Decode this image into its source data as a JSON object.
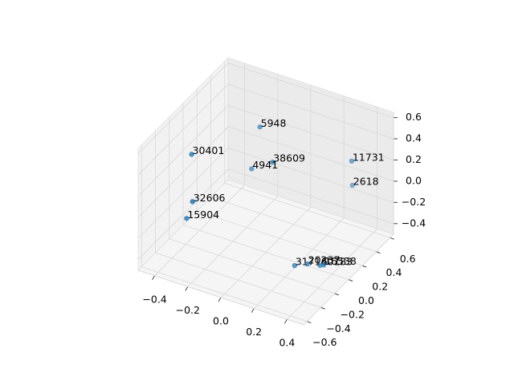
{
  "chart_data": {
    "type": "scatter3d",
    "x": [
      -0.09,
      -0.34,
      0.04,
      -0.14,
      0.41,
      0.36,
      -0.28,
      -0.37,
      0.22,
      0.28,
      0.34,
      0.35
    ],
    "y": [
      0.13,
      -0.26,
      0.0,
      0.13,
      0.26,
      0.39,
      -0.39,
      -0.26,
      -0.11,
      -0.07,
      -0.03,
      0.0
    ],
    "z": [
      0.55,
      0.42,
      0.37,
      0.13,
      0.4,
      0.06,
      0.09,
      -0.2,
      -0.44,
      -0.42,
      -0.43,
      -0.44
    ],
    "labels": [
      "5948",
      "30401",
      "38609",
      "4941",
      "11731",
      "2618",
      "32606",
      "15904",
      "31716",
      "20237",
      "40183",
      "16538"
    ],
    "color": "#1f77b4",
    "xlim": [
      -0.5,
      0.5
    ],
    "ylim": [
      -0.65,
      0.65
    ],
    "zlim": [
      -0.5,
      0.65
    ],
    "xticks": [
      {
        "value": -0.4,
        "label": "−0.4"
      },
      {
        "value": -0.2,
        "label": "−0.2"
      },
      {
        "value": 0,
        "label": "0.0"
      },
      {
        "value": 0.2,
        "label": "0.2"
      },
      {
        "value": 0.4,
        "label": "0.4"
      }
    ],
    "yticks": [
      {
        "value": -0.6,
        "label": "−0.6"
      },
      {
        "value": -0.4,
        "label": "−0.4"
      },
      {
        "value": -0.2,
        "label": "−0.2"
      },
      {
        "value": 0,
        "label": "0.0"
      },
      {
        "value": 0.2,
        "label": "0.2"
      },
      {
        "value": 0.4,
        "label": "0.4"
      },
      {
        "value": 0.6,
        "label": "0.6"
      }
    ],
    "zticks": [
      {
        "value": -0.4,
        "label": "−0.4"
      },
      {
        "value": -0.2,
        "label": "−0.2"
      },
      {
        "value": 0,
        "label": "0.0"
      },
      {
        "value": 0.2,
        "label": "0.2"
      },
      {
        "value": 0.4,
        "label": "0.4"
      },
      {
        "value": 0.6,
        "label": "0.6"
      }
    ],
    "grid": true
  }
}
